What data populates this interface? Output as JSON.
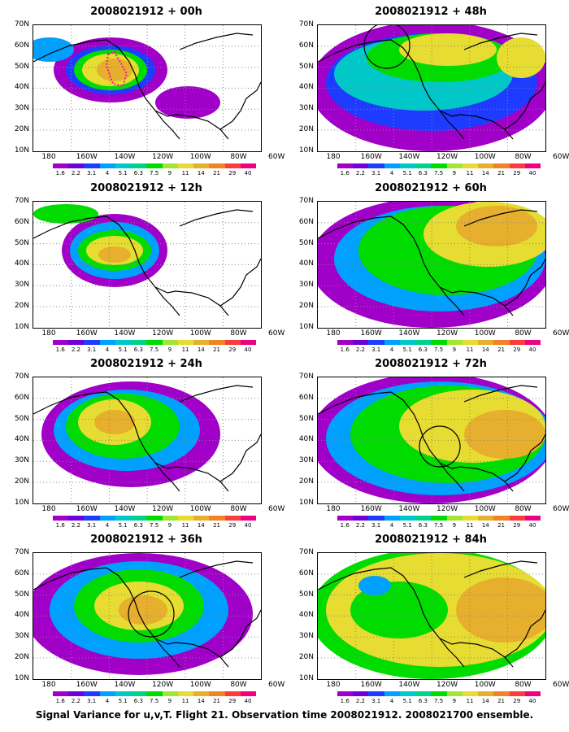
{
  "panels": [
    {
      "title": "2008021912 + 00h"
    },
    {
      "title": "2008021912 + 48h"
    },
    {
      "title": "2008021912 + 12h"
    },
    {
      "title": "2008021912 + 60h"
    },
    {
      "title": "2008021912 + 24h"
    },
    {
      "title": "2008021912 + 72h"
    },
    {
      "title": "2008021912 + 36h"
    },
    {
      "title": "2008021912 + 84h"
    }
  ],
  "axes": {
    "lat_labels": [
      "70N",
      "60N",
      "50N",
      "40N",
      "30N",
      "20N",
      "10N"
    ],
    "lon_labels": [
      "180",
      "160W",
      "140W",
      "120W",
      "100W",
      "80W",
      "60W"
    ]
  },
  "colorbar": {
    "ticks": [
      "1.6",
      "2.2",
      "3.1",
      "4",
      "5.1",
      "6.3",
      "7.5",
      "9",
      "11",
      "14",
      "21",
      "29",
      "40"
    ],
    "colors": [
      "#a000c8",
      "#6e00dc",
      "#1e3cff",
      "#00a0ff",
      "#00c8c8",
      "#00d28c",
      "#00dc00",
      "#a0e632",
      "#e6dc32",
      "#e6af2d",
      "#f08228",
      "#fa3c3c",
      "#f00082"
    ]
  },
  "caption": "Signal Variance for u,v,T. Flight 21. Observation time 2008021912. 2008021700 ensemble."
}
